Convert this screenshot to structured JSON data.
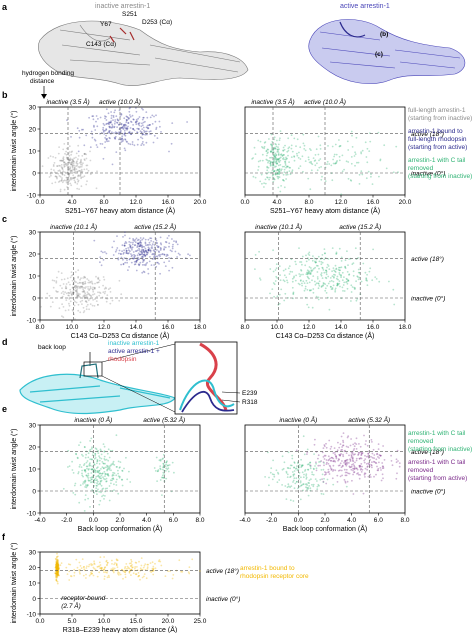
{
  "panel_labels": {
    "a": "a",
    "b": "b",
    "c": "c",
    "d": "d",
    "e": "e",
    "f": "f"
  },
  "panel_a": {
    "inactive_title": "inactive arrestin-1",
    "active_title": "active arrestin-1",
    "residue_labels": [
      "S251",
      "Y67",
      "D253 (Cα)",
      "C143 (Cα)"
    ],
    "callouts": [
      "(b)",
      "(c)"
    ],
    "hbond_label_1": "hydrogen bonding",
    "hbond_label_2": "distance"
  },
  "colors": {
    "gray": "#8a8a8a",
    "navy": "#2b2a8e",
    "green": "#2fb374",
    "purple": "#7b2a8a",
    "yellow": "#f2b800",
    "cyan": "#2fbfcf",
    "red": "#d9414a"
  },
  "legends": {
    "b": [
      {
        "lines": [
          "full-length arrestin-1",
          "(starting from inactive)"
        ],
        "color": "#8a8a8a"
      },
      {
        "lines": [
          "arrestin-1 bound to",
          "full-length rhodopsin",
          "(starting from active)"
        ],
        "color": "#2b2a8e"
      },
      {
        "lines": [
          "arrestin-1 with C tail",
          "removed",
          "(starting from inactive)"
        ],
        "color": "#2fb374"
      }
    ],
    "e": [
      {
        "lines": [
          "arrestin-1 with C tail",
          "removed",
          "(starting from inactive)"
        ],
        "color": "#2fb374"
      },
      {
        "lines": [
          "arrestin-1 with C tail",
          "removed",
          "(starting from active)"
        ],
        "color": "#7b2a8a"
      }
    ],
    "f": [
      {
        "lines": [
          "arrestin-1 bound to",
          "rhodopsin receptor core"
        ],
        "color": "#f2b800"
      }
    ]
  },
  "panel_d": {
    "back_loop": "back loop",
    "legend_inactive": "inactive arrestin-1",
    "legend_active_1": "active arrestin-1 +",
    "legend_active_2": "rhodopsin",
    "res_1": "E239",
    "res_2": "R318"
  },
  "chart_data": [
    {
      "id": "b-left",
      "type": "scatter",
      "xlabel": "S251–Y67 heavy atom distance (Å)",
      "ylabel": "interdomain twist angle (°)",
      "xlim": [
        0,
        20
      ],
      "ylim": [
        -10,
        30
      ],
      "xticks": [
        "0.0",
        "4.0",
        "8.0",
        "12.0",
        "16.0",
        "20.0"
      ],
      "yticks": [
        "-10",
        "0",
        "10",
        "20",
        "30"
      ],
      "top_labels": [
        {
          "text": "inactive (3.5 Å)",
          "x": 3.5
        },
        {
          "text": "active (10.0 Å)",
          "x": 10.0
        }
      ],
      "series": [
        {
          "color": "gray",
          "cx": 3.8,
          "cy": 2,
          "sx": 1.2,
          "sy": 4.5,
          "n": 260
        },
        {
          "color": "navy",
          "cx": 10.5,
          "cy": 20,
          "sx": 2.5,
          "sy": 4,
          "n": 300
        }
      ]
    },
    {
      "id": "b-right",
      "type": "scatter",
      "xlim": [
        0,
        20
      ],
      "ylim": [
        -10,
        30
      ],
      "xlabel": "S251–Y67 heavy atom distance (Å)",
      "xticks": [
        "0.0",
        "4.0",
        "8.0",
        "12.0",
        "16.0",
        "20.0"
      ],
      "top_labels": [
        {
          "text": "inactive (3.5 Å)",
          "x": 3.5
        },
        {
          "text": "active (10.0 Å)",
          "x": 10.0
        }
      ],
      "right_labels": [
        {
          "text": "active (18°)",
          "y": 18
        },
        {
          "text": "inactive (0°)",
          "y": 0
        }
      ],
      "series": [
        {
          "color": "green",
          "cx": 3.8,
          "cy": 5,
          "sx": 1.0,
          "sy": 6,
          "n": 220
        },
        {
          "color": "green",
          "cx": 10,
          "cy": 6,
          "sx": 4,
          "sy": 6,
          "n": 150
        }
      ]
    },
    {
      "id": "c-left",
      "type": "scatter",
      "xlabel": "C143 Cα–D253 Cα distance (Å)",
      "ylabel": "interdomain twist angle (°)",
      "xlim": [
        8,
        18
      ],
      "ylim": [
        -10,
        30
      ],
      "xticks": [
        "8.0",
        "10.0",
        "12.0",
        "14.0",
        "16.0",
        "18.0"
      ],
      "yticks": [
        "-10",
        "0",
        "10",
        "20",
        "30"
      ],
      "top_labels": [
        {
          "text": "inactive (10.1 Å)",
          "x": 10.1
        },
        {
          "text": "active (15.2 Å)",
          "x": 15.2
        }
      ],
      "series": [
        {
          "color": "gray",
          "cx": 10.6,
          "cy": 3,
          "sx": 0.9,
          "sy": 4,
          "n": 260
        },
        {
          "color": "navy",
          "cx": 14.4,
          "cy": 21,
          "sx": 1.0,
          "sy": 4,
          "n": 320
        }
      ]
    },
    {
      "id": "c-right",
      "type": "scatter",
      "xlabel": "C143 Cα–D253 Cα distance (Å)",
      "xlim": [
        8,
        18
      ],
      "ylim": [
        -10,
        30
      ],
      "xticks": [
        "8.0",
        "10.0",
        "12.0",
        "14.0",
        "16.0",
        "18.0"
      ],
      "top_labels": [
        {
          "text": "inactive (10.1 Å)",
          "x": 10.1
        },
        {
          "text": "active (15.2 Å)",
          "x": 15.2
        }
      ],
      "right_labels": [
        {
          "text": "active (18°)",
          "y": 18
        },
        {
          "text": "inactive (0°)",
          "y": 0
        }
      ],
      "series": [
        {
          "color": "green",
          "cx": 12.8,
          "cy": 10,
          "sx": 1.6,
          "sy": 6,
          "n": 330
        }
      ]
    },
    {
      "id": "e-left",
      "type": "scatter",
      "xlabel": "Back loop conformation (Å)",
      "ylabel": "interdomain twist angle (°)",
      "xlim": [
        -4,
        8
      ],
      "ylim": [
        -10,
        30
      ],
      "xticks": [
        "-4.0",
        "-2.0",
        "0.0",
        "2.0",
        "4.0",
        "6.0",
        "8.0"
      ],
      "yticks": [
        "-10",
        "0",
        "10",
        "20",
        "30"
      ],
      "top_labels": [
        {
          "text": "inactive (0 Å)",
          "x": 0
        },
        {
          "text": "active (5.32 Å)",
          "x": 5.32
        }
      ],
      "series": [
        {
          "color": "green",
          "cx": 0.3,
          "cy": 9,
          "sx": 0.9,
          "sy": 6,
          "n": 300
        },
        {
          "color": "green",
          "cx": 5.2,
          "cy": 10,
          "sx": 0.3,
          "sy": 4,
          "n": 50
        }
      ]
    },
    {
      "id": "e-right",
      "type": "scatter",
      "xlabel": "Back loop conformation (Å)",
      "xlim": [
        -4,
        8
      ],
      "ylim": [
        -10,
        30
      ],
      "xticks": [
        "-4.0",
        "-2.0",
        "0.0",
        "2.0",
        "4.0",
        "6.0",
        "8.0"
      ],
      "top_labels": [
        {
          "text": "inactive (0 Å)",
          "x": 0
        },
        {
          "text": "active (5.32 Å)",
          "x": 5.32
        }
      ],
      "right_labels": [
        {
          "text": "active (18°)",
          "y": 18
        },
        {
          "text": "inactive (0°)",
          "y": 0
        }
      ],
      "series": [
        {
          "color": "green",
          "cx": 0,
          "cy": 7,
          "sx": 1.1,
          "sy": 5,
          "n": 160
        },
        {
          "color": "purple",
          "cx": 4.0,
          "cy": 14,
          "sx": 1.4,
          "sy": 5,
          "n": 320
        }
      ]
    },
    {
      "id": "f",
      "type": "scatter",
      "xlabel": "R318–E239 heavy atom distance (Å)",
      "ylabel": "interdomain twist angle (°)",
      "xlim": [
        0,
        25
      ],
      "ylim": [
        -10,
        30
      ],
      "xticks": [
        "0.0",
        "5.0",
        "10.0",
        "15.0",
        "20.0",
        "25.0"
      ],
      "yticks": [
        "-10",
        "0",
        "10",
        "20",
        "30"
      ],
      "right_labels": [
        {
          "text": "active (18°)",
          "y": 18
        },
        {
          "text": "inactive (0°)",
          "y": 0
        }
      ],
      "annotation": [
        "receptor-bound",
        "(2.7 Å)"
      ],
      "series": [
        {
          "color": "yellow",
          "cx": 2.7,
          "cy": 19,
          "sx": 0.12,
          "sy": 3,
          "n": 200
        },
        {
          "color": "yellow",
          "cx": 12,
          "cy": 19,
          "sx": 5,
          "sy": 3,
          "n": 220
        }
      ]
    }
  ]
}
